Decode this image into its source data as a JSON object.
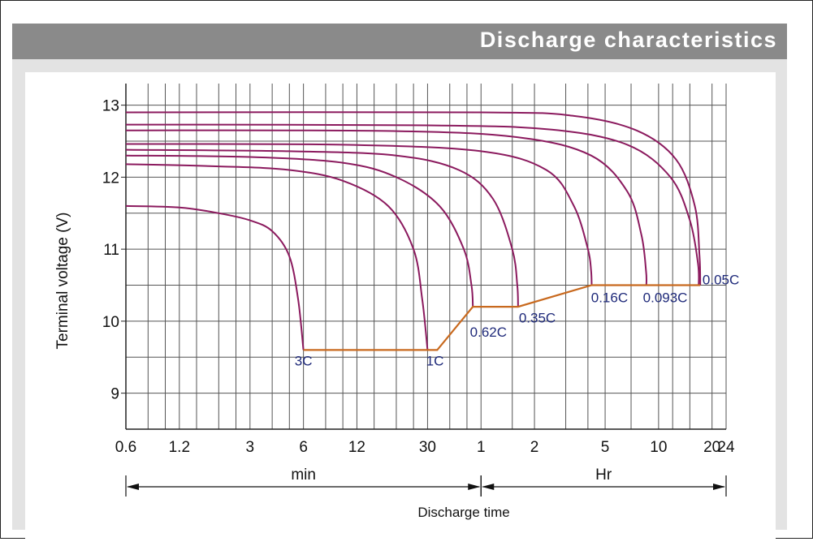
{
  "header": {
    "title": "Discharge characteristics"
  },
  "chart_data": {
    "type": "line",
    "title": "Discharge characteristics",
    "ylabel": "Terminal voltage (V)",
    "xlabel": "Discharge time",
    "x_scale": "log",
    "ylim": [
      8.5,
      13.3
    ],
    "y_ticks": [
      9,
      10,
      11,
      12,
      13
    ],
    "x_ticks": [
      {
        "label": "0.6",
        "minutes": 0.6
      },
      {
        "label": "1.2",
        "minutes": 1.2
      },
      {
        "label": "3",
        "minutes": 3
      },
      {
        "label": "6",
        "minutes": 6
      },
      {
        "label": "12",
        "minutes": 12
      },
      {
        "label": "30",
        "minutes": 30
      },
      {
        "label": "1",
        "minutes": 60
      },
      {
        "label": "2",
        "minutes": 120
      },
      {
        "label": "5",
        "minutes": 300
      },
      {
        "label": "10",
        "minutes": 600
      },
      {
        "label": "20",
        "minutes": 1200
      },
      {
        "label": "24",
        "minutes": 1440
      }
    ],
    "unit_ranges": [
      {
        "label": "min",
        "from_minutes": 0.6,
        "to_minutes": 60
      },
      {
        "label": "Hr",
        "from_minutes": 60,
        "to_minutes": 1440
      }
    ],
    "grid": true,
    "line_color": "#8b1a5e",
    "cutoff_color": "#c8691e",
    "label_color": "#1f2a7a",
    "series": [
      {
        "name": "3C",
        "points": [
          [
            0.6,
            11.6
          ],
          [
            1.2,
            11.58
          ],
          [
            2,
            11.5
          ],
          [
            3,
            11.4
          ],
          [
            4,
            11.25
          ],
          [
            5,
            10.9
          ],
          [
            5.6,
            10.3
          ],
          [
            6,
            9.6
          ]
        ]
      },
      {
        "name": "1C",
        "points": [
          [
            0.6,
            12.18
          ],
          [
            2,
            12.15
          ],
          [
            5,
            12.1
          ],
          [
            10,
            11.95
          ],
          [
            18,
            11.6
          ],
          [
            25,
            11.0
          ],
          [
            28,
            10.3
          ],
          [
            30,
            9.6
          ]
        ]
      },
      {
        "name": "0.62C",
        "points": [
          [
            0.6,
            12.3
          ],
          [
            3,
            12.28
          ],
          [
            10,
            12.2
          ],
          [
            20,
            12.0
          ],
          [
            35,
            11.6
          ],
          [
            48,
            11.0
          ],
          [
            53,
            10.5
          ],
          [
            54,
            10.2
          ]
        ]
      },
      {
        "name": "0.35C",
        "points": [
          [
            0.6,
            12.38
          ],
          [
            5,
            12.36
          ],
          [
            20,
            12.3
          ],
          [
            45,
            12.1
          ],
          [
            70,
            11.7
          ],
          [
            90,
            11.0
          ],
          [
            96,
            10.5
          ],
          [
            97,
            10.2
          ]
        ]
      },
      {
        "name": "0.16C",
        "points": [
          [
            0.6,
            12.46
          ],
          [
            10,
            12.45
          ],
          [
            60,
            12.36
          ],
          [
            140,
            12.1
          ],
          [
            200,
            11.6
          ],
          [
            240,
            11.0
          ],
          [
            250,
            10.7
          ],
          [
            252,
            10.5
          ]
        ]
      },
      {
        "name": "0.093C",
        "points": [
          [
            0.6,
            12.65
          ],
          [
            20,
            12.64
          ],
          [
            100,
            12.55
          ],
          [
            250,
            12.3
          ],
          [
            400,
            11.8
          ],
          [
            480,
            11.2
          ],
          [
            510,
            10.7
          ],
          [
            512,
            10.5
          ]
        ]
      },
      {
        "name": "0.05C",
        "points": [
          [
            0.6,
            12.73
          ],
          [
            30,
            12.72
          ],
          [
            150,
            12.66
          ],
          [
            400,
            12.45
          ],
          [
            700,
            12.0
          ],
          [
            900,
            11.4
          ],
          [
            1000,
            10.8
          ],
          [
            1010,
            10.5
          ]
        ]
      },
      {
        "name": "",
        "points": [
          [
            0.6,
            12.9
          ],
          [
            60,
            12.9
          ],
          [
            200,
            12.85
          ],
          [
            450,
            12.65
          ],
          [
            750,
            12.25
          ],
          [
            960,
            11.6
          ],
          [
            1020,
            10.9
          ],
          [
            1030,
            10.5
          ]
        ]
      }
    ],
    "cutoff_line": [
      [
        6,
        9.6
      ],
      [
        30,
        9.6
      ],
      [
        34,
        9.6
      ],
      [
        54,
        10.2
      ],
      [
        97,
        10.2
      ],
      [
        252,
        10.5
      ],
      [
        512,
        10.5
      ],
      [
        1030,
        10.5
      ]
    ],
    "rate_labels": [
      {
        "label": "3C",
        "minutes": 6.0,
        "v": 9.45
      },
      {
        "label": "1C",
        "minutes": 33.0,
        "v": 9.45
      },
      {
        "label": "0.62C",
        "minutes": 52.0,
        "v": 9.85
      },
      {
        "label": "0.35C",
        "minutes": 98.0,
        "v": 10.05
      },
      {
        "label": "0.16C",
        "minutes": 250.0,
        "v": 10.33
      },
      {
        "label": "0.093C",
        "minutes": 490.0,
        "v": 10.33
      },
      {
        "label": "0.05C",
        "minutes": 1060.0,
        "v": 10.58
      }
    ]
  }
}
